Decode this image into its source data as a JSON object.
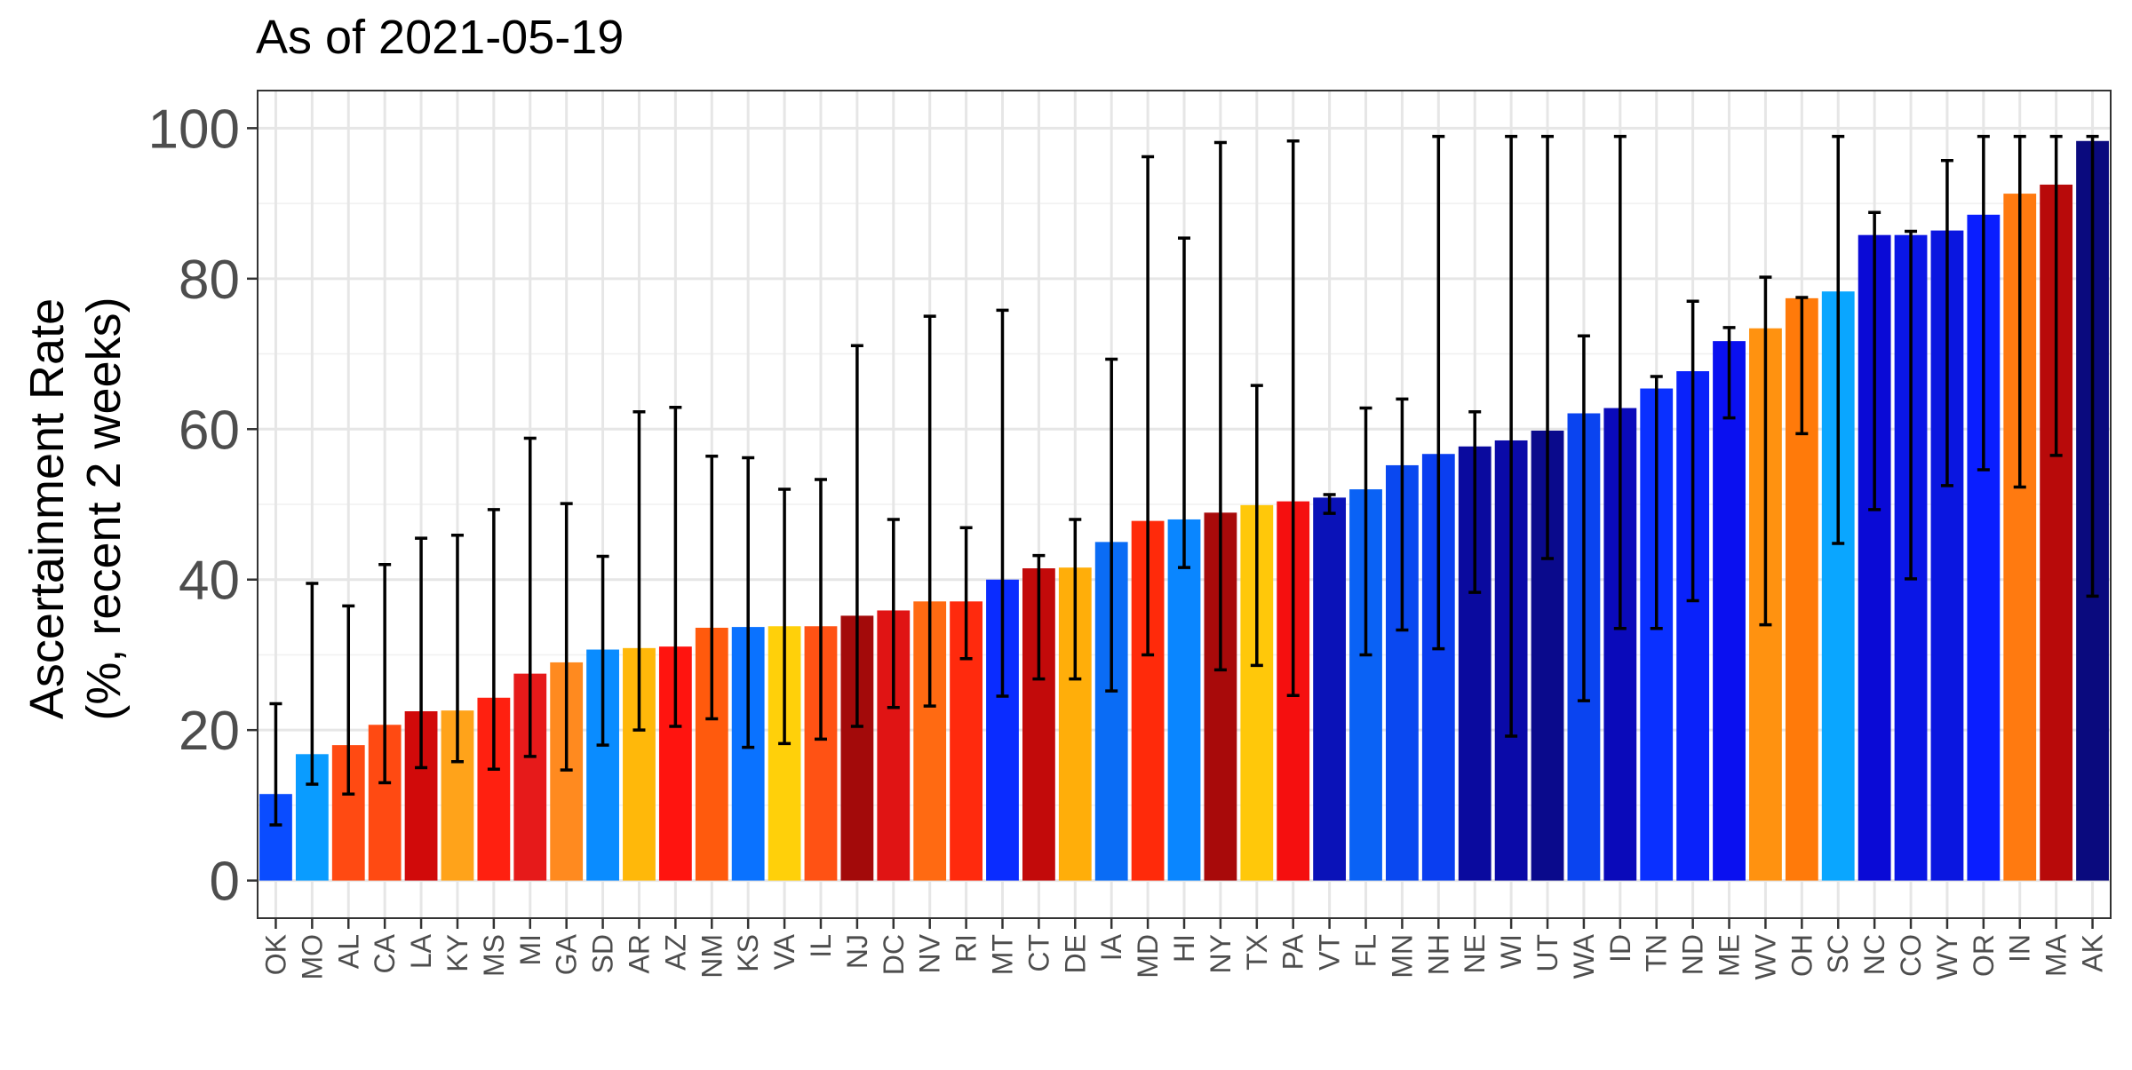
{
  "chart_data": {
    "type": "bar",
    "title": "As of 2021-05-19",
    "ylabel_line1": "Ascertainment Rate",
    "ylabel_line2": "(%, recent 2 weeks)",
    "xlabel": "",
    "ylim": [
      -5,
      105
    ],
    "yticks": [
      0,
      20,
      40,
      60,
      80,
      100
    ],
    "grid": true,
    "legend": "none",
    "error_bars": true,
    "categories": [
      "OK",
      "MO",
      "AL",
      "CA",
      "LA",
      "KY",
      "MS",
      "MI",
      "GA",
      "SD",
      "AR",
      "AZ",
      "NM",
      "KS",
      "VA",
      "IL",
      "NJ",
      "DC",
      "NV",
      "RI",
      "MT",
      "CT",
      "DE",
      "IA",
      "MD",
      "HI",
      "NY",
      "TX",
      "PA",
      "VT",
      "FL",
      "MN",
      "NH",
      "NE",
      "WI",
      "UT",
      "WA",
      "ID",
      "TN",
      "ND",
      "ME",
      "WV",
      "OH",
      "SC",
      "NC",
      "CO",
      "WY",
      "OR",
      "IN",
      "MA",
      "AK"
    ],
    "values": [
      11.5,
      16.8,
      18.0,
      20.7,
      22.5,
      22.6,
      24.3,
      27.5,
      29.0,
      30.7,
      30.9,
      31.1,
      33.6,
      33.7,
      33.8,
      33.8,
      35.2,
      35.9,
      37.1,
      37.1,
      40.0,
      41.5,
      41.6,
      45.0,
      47.8,
      48.0,
      48.9,
      49.9,
      50.4,
      50.9,
      52.0,
      55.2,
      56.7,
      57.7,
      58.5,
      59.8,
      62.1,
      62.8,
      65.4,
      67.7,
      71.7,
      73.4,
      77.4,
      78.3,
      85.8,
      85.8,
      86.4,
      88.5,
      91.3,
      92.5,
      98.3
    ],
    "lower": [
      7.4,
      12.8,
      11.5,
      13.0,
      15.0,
      15.8,
      14.8,
      16.5,
      14.7,
      18.0,
      20.0,
      20.5,
      21.5,
      17.7,
      18.2,
      18.8,
      20.5,
      23.0,
      23.2,
      29.5,
      24.5,
      26.8,
      26.8,
      25.2,
      30.0,
      41.6,
      28.0,
      28.6,
      24.6,
      48.8,
      30.0,
      33.3,
      30.8,
      38.3,
      19.2,
      42.8,
      23.9,
      33.5,
      33.5,
      37.2,
      61.5,
      34.0,
      59.4,
      44.8,
      49.3,
      40.1,
      52.5,
      54.6,
      52.3,
      56.5,
      37.8
    ],
    "upper": [
      23.5,
      39.5,
      36.5,
      42.0,
      45.5,
      45.9,
      49.3,
      58.8,
      50.1,
      43.1,
      62.3,
      62.9,
      56.4,
      56.2,
      52.0,
      53.3,
      71.1,
      48.0,
      75.0,
      46.9,
      75.8,
      43.2,
      48.0,
      69.3,
      96.2,
      85.4,
      98.1,
      65.8,
      98.3,
      51.3,
      62.8,
      64.0,
      98.9,
      62.3,
      98.9,
      98.9,
      72.4,
      98.9,
      67.0,
      77.0,
      73.5,
      80.2,
      77.5,
      98.9,
      88.8,
      86.3,
      95.7,
      98.9,
      98.9,
      98.9,
      98.9
    ],
    "colors": [
      "#0A4CFF",
      "#0A9CFF",
      "#FF4A12",
      "#FF4A12",
      "#D10A0A",
      "#FFA31A",
      "#FF2010",
      "#E61A1A",
      "#FF8A1F",
      "#0A8CFF",
      "#FFB80A",
      "#FF140F",
      "#FF5A0D",
      "#0A72FF",
      "#FFD00A",
      "#FF5214",
      "#A30A0A",
      "#E01414",
      "#FF6A12",
      "#FF2A0D",
      "#0A2CFF",
      "#C20A0A",
      "#FFAE0A",
      "#0A6CF5",
      "#FF2A0A",
      "#0A86FF",
      "#A80A0A",
      "#FFC80A",
      "#F50F0F",
      "#0A12B8",
      "#0A62F5",
      "#0A48F0",
      "#0A3EF0",
      "#0A0A9E",
      "#0A0AA8",
      "#0A0A8C",
      "#0A44F0",
      "#0A0ABA",
      "#0A30FF",
      "#0A22FA",
      "#0A10F0",
      "#FF9210",
      "#FF7A0A",
      "#0AA6FF",
      "#0A0AD6",
      "#0A16E6",
      "#0A16E0",
      "#0A1EFF",
      "#FF7A10",
      "#B80A0A",
      "#0A0A7E"
    ]
  }
}
